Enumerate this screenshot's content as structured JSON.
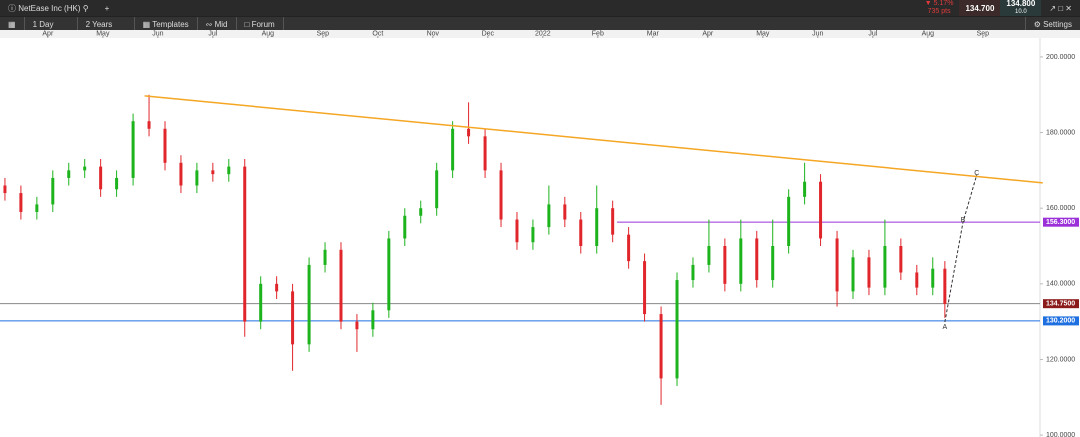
{
  "toolbar": {
    "instrument": "NetEase Inc (HK)",
    "change_pct": "▼ 5.17%",
    "change_pts": "735 pts",
    "sell": "134.700",
    "buy": "134.800",
    "spread": "10.0",
    "interval": "1 Day",
    "range": "2 Years",
    "templates": "Templates",
    "price_mode": "Mid",
    "forum": "Forum",
    "settings": "Settings"
  },
  "chart_data": {
    "type": "candlestick",
    "xlim": [
      -0.87,
      18.04
    ],
    "ylim": [
      99.5,
      205
    ],
    "xticks": [
      {
        "value": 0,
        "label": "Apr"
      },
      {
        "value": 1,
        "label": "May"
      },
      {
        "value": 2,
        "label": "Jun"
      },
      {
        "value": 3,
        "label": "Jul"
      },
      {
        "value": 4,
        "label": "Aug"
      },
      {
        "value": 5,
        "label": "Sep"
      },
      {
        "value": 6,
        "label": "Oct"
      },
      {
        "value": 7,
        "label": "Nov"
      },
      {
        "value": 8,
        "label": "Dec"
      },
      {
        "value": 9,
        "label": "2022"
      },
      {
        "value": 10,
        "label": "Feb"
      },
      {
        "value": 11,
        "label": "Mar"
      },
      {
        "value": 12,
        "label": "Apr"
      },
      {
        "value": 13,
        "label": "May"
      },
      {
        "value": 14,
        "label": "Jun"
      },
      {
        "value": 15,
        "label": "Jul"
      },
      {
        "value": 16,
        "label": "Aug"
      },
      {
        "value": 17,
        "label": "Sep"
      }
    ],
    "yticks": [
      {
        "value": 200,
        "label": "200.0000"
      },
      {
        "value": 180,
        "label": "180.0000"
      },
      {
        "value": 160,
        "label": "160.0000"
      },
      {
        "value": 140,
        "label": "140.0000"
      },
      {
        "value": 120,
        "label": "120.0000"
      },
      {
        "value": 100,
        "label": "100.0000"
      }
    ],
    "up_color": "#1db31d",
    "down_color": "#e0262b",
    "x": [
      -0.78,
      -0.49,
      -0.2,
      0.09,
      0.38,
      0.67,
      0.96,
      1.25,
      1.55,
      1.84,
      2.13,
      2.42,
      2.71,
      3.0,
      3.29,
      3.58,
      3.87,
      4.16,
      4.45,
      4.75,
      5.04,
      5.33,
      5.62,
      5.91,
      6.2,
      6.49,
      6.78,
      7.07,
      7.36,
      7.65,
      7.95,
      8.24,
      8.53,
      8.82,
      9.11,
      9.4,
      9.69,
      9.98,
      10.27,
      10.56,
      10.85,
      11.15,
      11.44,
      11.73,
      12.02,
      12.31,
      12.6,
      12.89,
      13.18,
      13.47,
      13.76,
      14.05,
      14.35,
      14.64,
      14.93,
      15.22,
      15.51,
      15.8,
      16.09,
      16.31
    ],
    "open": [
      166,
      164,
      159,
      161,
      168,
      170,
      171,
      165,
      168,
      183,
      181,
      172,
      166,
      170,
      169,
      171,
      130,
      140,
      138,
      124,
      145,
      149,
      130,
      128,
      133,
      152,
      158,
      160,
      170,
      181,
      179,
      170,
      157,
      151,
      155,
      161,
      157,
      150,
      160,
      153,
      146,
      132,
      115,
      141,
      145,
      150,
      140,
      152,
      141,
      150,
      163,
      167,
      152,
      138,
      147,
      139,
      150,
      143,
      139,
      144
    ],
    "high": [
      168,
      166,
      163,
      170,
      172,
      173,
      173,
      170,
      185,
      190,
      183,
      174,
      172,
      172,
      173,
      173,
      142,
      142,
      140,
      147,
      151,
      151,
      132,
      135,
      154,
      160,
      162,
      172,
      183,
      188,
      181,
      172,
      159,
      157,
      166,
      163,
      159,
      166,
      162,
      155,
      148,
      134,
      143,
      147,
      157,
      152,
      157,
      154,
      157,
      165,
      172,
      169,
      154,
      149,
      149,
      157,
      152,
      145,
      147,
      146
    ],
    "low": [
      162,
      157,
      157,
      159,
      166,
      168,
      163,
      163,
      166,
      179,
      170,
      164,
      164,
      167,
      167,
      126,
      128,
      136,
      117,
      122,
      143,
      128,
      122,
      126,
      131,
      150,
      156,
      158,
      168,
      177,
      168,
      155,
      149,
      149,
      153,
      155,
      148,
      148,
      151,
      144,
      130,
      108,
      113,
      139,
      143,
      138,
      138,
      139,
      139,
      148,
      161,
      150,
      134,
      136,
      137,
      137,
      141,
      137,
      137,
      131
    ],
    "close": [
      164,
      159,
      161,
      168,
      170,
      171,
      165,
      168,
      183,
      181,
      172,
      166,
      170,
      169,
      171,
      130,
      140,
      138,
      124,
      145,
      149,
      130,
      128,
      133,
      152,
      158,
      160,
      170,
      181,
      179,
      170,
      157,
      151,
      155,
      161,
      157,
      150,
      160,
      153,
      146,
      132,
      115,
      141,
      145,
      150,
      140,
      152,
      141,
      150,
      163,
      167,
      152,
      138,
      147,
      139,
      150,
      143,
      139,
      144,
      134.7
    ],
    "trendline": {
      "x": [
        1.76,
        18.09
      ],
      "y": [
        189.7,
        166.7
      ],
      "color": "#f5a623"
    },
    "levels": [
      {
        "value": 156.3,
        "start": 10.35,
        "label": "156.3000",
        "color": "#9b30d9"
      },
      {
        "value": 134.75,
        "start": -0.87,
        "label": "134.7500",
        "color": "#888888",
        "label_color": "#8b1a1a"
      },
      {
        "value": 130.2,
        "start": -0.87,
        "label": "130.2000",
        "color": "#1e6fe0"
      }
    ],
    "projection": {
      "x": [
        16.31,
        16.64,
        16.89
      ],
      "y": [
        129.9,
        156.3,
        168.8
      ],
      "labels": [
        "A",
        "B",
        "C"
      ]
    }
  }
}
